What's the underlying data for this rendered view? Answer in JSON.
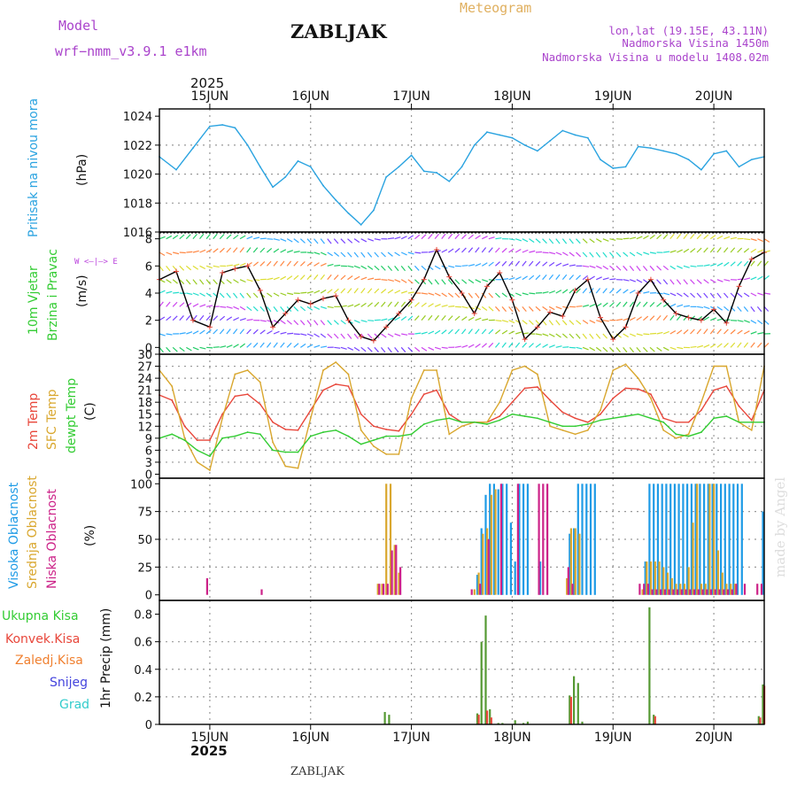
{
  "header": {
    "model_label": "Model",
    "model_name": "wrf−nmm_v3.9.1  e1km",
    "station_title": "ZABLJAK",
    "product": "Meteogram",
    "coords": "lon,lat (19.15E, 43.11N)",
    "elevation": "Nadmorska Visina 1450m",
    "model_elevation": "Nadmorska Visina u modelu 1408.02m",
    "footer_station": "ZABLJAK",
    "watermark": "made by Angel"
  },
  "time_axis": {
    "year": "2025",
    "day_labels": [
      "15JUN",
      "16JUN",
      "17JUN",
      "18JUN",
      "19JUN",
      "20JUN"
    ],
    "range_hours": [
      -12,
      132
    ]
  },
  "colors": {
    "pressure": "#2aa3e0",
    "temp_2m": "#e8463a",
    "sfc_temp": "#d9a72e",
    "dewpt": "#33cc33",
    "high_cloud": "#1e9be6",
    "mid_cloud": "#d9a72e",
    "low_cloud": "#cc2288",
    "total_precip": "#559933",
    "convective_precip": "#e8463a",
    "frozen_precip": "#f08030",
    "snow": "#4444dd",
    "hail": "#33cccc",
    "wind_speed_line": "#000000",
    "wind_label": "#33cc33",
    "compass": "#bb44dd",
    "header_purple": "#aa44cc",
    "product_title": "#e0b060"
  },
  "panels": {
    "pressure": {
      "ylabel": "Pritisak na nivou mora",
      "unit": "(hPa)"
    },
    "wind": {
      "ylabel_1": "10m Vjetar",
      "ylabel_2": "Brzina i Pravac",
      "unit": "(m/s)",
      "compass": "W <–|–> E"
    },
    "temperature": {
      "ylabel_1": "2m Temp",
      "ylabel_2": "SFC Temp",
      "ylabel_3": "dewpt Temp",
      "unit": "(C)"
    },
    "cloud": {
      "ylabel_1": "Visoka Oblacnost",
      "ylabel_2": "Srednja Oblacnost",
      "ylabel_3": "Niska Oblacnost",
      "unit": "(%)"
    },
    "precip": {
      "labels": [
        "Ukupna Kisa",
        "Konvek.Kisa",
        "Zaledj.Kisa",
        "Snijeg",
        "Grad"
      ],
      "ylabel": "1hr Precip (mm)"
    }
  },
  "chart_data": [
    {
      "type": "line",
      "id": "pressure",
      "title": "Pritisak na nivou mora",
      "ylabel": "(hPa)",
      "ylim": [
        1016,
        1024.5
      ],
      "yticks": [
        1016,
        1018,
        1020,
        1022,
        1024
      ],
      "grid": true,
      "series": [
        {
          "name": "Pritisak na nivou mora",
          "color": "#2aa3e0",
          "x": [
            -12,
            -8,
            -4,
            0,
            3,
            6,
            9,
            12,
            15,
            18,
            21,
            24,
            27,
            30,
            33,
            36,
            39,
            42,
            45,
            48,
            51,
            54,
            57,
            60,
            63,
            66,
            69,
            72,
            75,
            78,
            81,
            84,
            87,
            90,
            93,
            96,
            99,
            102,
            105,
            108,
            111,
            114,
            117,
            120,
            123,
            126,
            129,
            132
          ],
          "y": [
            1021.2,
            1020.3,
            1021.8,
            1023.3,
            1023.4,
            1023.2,
            1022,
            1020.5,
            1019.1,
            1019.8,
            1020.9,
            1020.5,
            1019.2,
            1018.2,
            1017.3,
            1016.5,
            1017.5,
            1019.8,
            1020.5,
            1021.3,
            1020.2,
            1020.1,
            1019.5,
            1020.5,
            1022,
            1022.9,
            1022.7,
            1022.5,
            1022,
            1021.6,
            1022.3,
            1023,
            1022.7,
            1022.5,
            1021,
            1020.4,
            1020.5,
            1021.9,
            1021.8,
            1021.6,
            1021.4,
            1021,
            1020.3,
            1021.4,
            1021.6,
            1020.5,
            1021,
            1021.2
          ]
        }
      ]
    },
    {
      "type": "line",
      "id": "wind",
      "title": "10m Vjetar Brzina i Pravac",
      "ylabel": "(m/s)",
      "ylim": [
        -0.5,
        8.5
      ],
      "yticks": [
        0,
        2,
        4,
        6,
        8
      ],
      "grid": false,
      "series": [
        {
          "name": "Brzina",
          "color": "#000000",
          "x": [
            -12,
            -8,
            -4,
            0,
            3,
            6,
            9,
            12,
            15,
            18,
            21,
            24,
            27,
            30,
            33,
            36,
            39,
            42,
            45,
            48,
            51,
            54,
            57,
            60,
            63,
            66,
            69,
            72,
            75,
            78,
            81,
            84,
            87,
            90,
            93,
            96,
            99,
            102,
            105,
            108,
            111,
            114,
            117,
            120,
            123,
            126,
            129,
            132
          ],
          "y": [
            5,
            5.6,
            2,
            1.5,
            5.5,
            5.8,
            6,
            4.2,
            1.5,
            2.5,
            3.5,
            3.2,
            3.6,
            3.8,
            2,
            0.8,
            0.5,
            1.5,
            2.5,
            3.5,
            5,
            7.2,
            5.2,
            4,
            2.5,
            4.5,
            5.5,
            3.5,
            0.6,
            1.5,
            2.6,
            2.3,
            4.2,
            5,
            2.2,
            0.6,
            1.5,
            4,
            5,
            3.5,
            2.5,
            2.2,
            2,
            2.8,
            1.8,
            4.5,
            6.5,
            7
          ]
        }
      ]
    },
    {
      "type": "line",
      "id": "temperature",
      "title": "2m Temp / SFC Temp / dewpt Temp",
      "ylabel": "(C)",
      "ylim": [
        -1,
        30
      ],
      "yticks": [
        0,
        3,
        6,
        9,
        12,
        15,
        18,
        21,
        24,
        27,
        30
      ],
      "grid": true,
      "series": [
        {
          "name": "2m Temp",
          "color": "#e8463a",
          "x": [
            -12,
            -9,
            -6,
            -3,
            0,
            3,
            6,
            9,
            12,
            15,
            18,
            21,
            24,
            27,
            30,
            33,
            36,
            39,
            42,
            45,
            48,
            51,
            54,
            57,
            60,
            63,
            66,
            69,
            72,
            75,
            78,
            81,
            84,
            87,
            90,
            93,
            96,
            99,
            102,
            105,
            108,
            111,
            114,
            117,
            120,
            123,
            126,
            129,
            132
          ],
          "y": [
            19.8,
            18.5,
            12,
            8.5,
            8.5,
            15,
            19.5,
            20,
            17.5,
            13,
            11.2,
            11,
            16,
            21,
            22.5,
            22,
            15,
            12,
            11.2,
            10.8,
            15,
            20,
            21,
            15,
            13,
            13,
            13,
            14.5,
            18,
            21.5,
            21.8,
            18.5,
            15.5,
            14,
            13,
            15,
            19,
            21.5,
            21.3,
            20,
            14,
            13,
            13,
            16,
            21,
            22,
            17,
            13.5,
            21
          ]
        },
        {
          "name": "SFC Temp",
          "color": "#d9a72e",
          "x": [
            -12,
            -9,
            -6,
            -3,
            0,
            3,
            6,
            9,
            12,
            15,
            18,
            21,
            24,
            27,
            30,
            33,
            36,
            39,
            42,
            45,
            48,
            51,
            54,
            57,
            60,
            63,
            66,
            69,
            72,
            75,
            78,
            81,
            84,
            87,
            90,
            93,
            96,
            99,
            102,
            105,
            108,
            111,
            114,
            117,
            120,
            123,
            126,
            129,
            132
          ],
          "y": [
            26,
            22,
            9,
            3,
            1,
            14,
            25,
            26,
            23,
            8,
            2,
            1.5,
            14,
            26,
            28,
            25,
            11,
            7,
            5,
            5,
            19,
            26,
            26,
            10,
            12,
            13,
            13,
            18,
            26,
            27,
            25,
            12,
            11,
            10,
            11,
            16,
            26,
            27.5,
            24,
            19,
            11,
            9,
            10,
            18,
            27,
            27,
            13,
            11,
            27
          ]
        },
        {
          "name": "dewpt Temp",
          "color": "#33cc33",
          "x": [
            -12,
            -9,
            -6,
            -3,
            0,
            3,
            6,
            9,
            12,
            15,
            18,
            21,
            24,
            27,
            30,
            33,
            36,
            39,
            42,
            45,
            48,
            51,
            54,
            57,
            60,
            63,
            66,
            69,
            72,
            75,
            78,
            81,
            84,
            87,
            90,
            93,
            96,
            99,
            102,
            105,
            108,
            111,
            114,
            117,
            120,
            123,
            126,
            129,
            132
          ],
          "y": [
            9,
            10,
            8.5,
            6,
            4.5,
            9,
            9.5,
            10.5,
            10,
            6,
            5.5,
            5.5,
            9.5,
            10.5,
            11,
            9.5,
            7.5,
            8.5,
            9.5,
            9.5,
            10,
            12.5,
            13.5,
            14,
            13,
            13,
            12.5,
            13.5,
            15,
            14.5,
            14,
            13,
            12,
            12,
            12.5,
            13.5,
            14,
            14.5,
            15,
            14,
            13,
            10,
            9.5,
            10.5,
            14,
            14.5,
            13,
            13,
            13
          ]
        }
      ]
    },
    {
      "type": "bar",
      "id": "cloud",
      "title": "Visoka / Srednja / Niska Oblacnost",
      "ylabel": "(%)",
      "ylim": [
        -5,
        105
      ],
      "yticks": [
        0,
        25,
        50,
        75,
        100
      ],
      "grid": true,
      "series": [
        {
          "name": "Visoka Oblacnost",
          "color": "#1e9be6",
          "x": [
            64,
            65,
            66,
            67,
            68,
            69,
            70,
            71,
            72,
            73,
            74,
            75,
            76,
            79,
            86,
            87,
            88,
            89,
            90,
            91,
            92,
            104,
            105,
            106,
            107,
            108,
            109,
            110,
            111,
            112,
            113,
            114,
            115,
            116,
            117,
            118,
            119,
            120,
            121,
            122,
            123,
            124,
            125,
            126,
            127,
            132
          ],
          "y": [
            18,
            60,
            90,
            100,
            100,
            95,
            100,
            100,
            65,
            30,
            100,
            100,
            100,
            30,
            55,
            60,
            100,
            100,
            100,
            100,
            100,
            30,
            100,
            100,
            100,
            100,
            100,
            100,
            100,
            100,
            100,
            100,
            100,
            100,
            100,
            100,
            100,
            100,
            100,
            100,
            100,
            100,
            100,
            100,
            100,
            75
          ]
        },
        {
          "name": "Srednja Oblacnost",
          "color": "#d9a72e",
          "x": [
            40,
            41,
            42,
            43,
            44,
            45,
            63,
            64,
            65,
            66,
            67,
            68,
            85,
            86,
            87,
            88,
            103,
            104,
            105,
            106,
            107,
            108,
            109,
            110,
            111,
            112,
            113,
            114,
            115,
            116,
            117,
            118,
            119,
            120,
            121,
            122,
            123,
            124,
            125
          ],
          "y": [
            10,
            10,
            100,
            100,
            45,
            20,
            5,
            20,
            55,
            60,
            90,
            95,
            15,
            60,
            60,
            55,
            5,
            30,
            30,
            30,
            30,
            25,
            20,
            15,
            10,
            10,
            10,
            25,
            65,
            100,
            10,
            10,
            100,
            100,
            40,
            20,
            10,
            10,
            10
          ]
        },
        {
          "name": "Niska Oblacnost",
          "color": "#cc2288",
          "x": [
            -1,
            12,
            40,
            41,
            42,
            43,
            44,
            45,
            62,
            64,
            66,
            69,
            73,
            78,
            79,
            80,
            85,
            86,
            102,
            103,
            104,
            105,
            106,
            107,
            108,
            109,
            110,
            111,
            112,
            113,
            114,
            115,
            116,
            117,
            118,
            119,
            120,
            121,
            122,
            123,
            124,
            125,
            127,
            130,
            131
          ],
          "y": [
            15,
            5,
            10,
            10,
            10,
            40,
            45,
            25,
            5,
            10,
            50,
            100,
            100,
            100,
            100,
            100,
            25,
            10,
            10,
            10,
            10,
            5,
            5,
            5,
            5,
            5,
            5,
            5,
            5,
            5,
            5,
            5,
            5,
            5,
            5,
            5,
            5,
            5,
            5,
            5,
            5,
            10,
            10,
            10,
            10
          ]
        }
      ]
    },
    {
      "type": "bar",
      "id": "precip",
      "title": "1hr Precip (mm)",
      "ylabel": "1hr Precip (mm)",
      "ylim": [
        0,
        0.9
      ],
      "yticks": [
        0,
        0.2,
        0.4,
        0.6,
        0.8
      ],
      "grid": true,
      "series": [
        {
          "name": "Ukupna Kisa",
          "color": "#559933",
          "x": [
            42,
            43,
            64,
            65,
            66,
            67,
            69,
            70,
            73,
            75,
            76,
            86,
            87,
            88,
            89,
            105,
            106,
            131,
            132
          ],
          "y": [
            0.09,
            0.07,
            0.08,
            0.6,
            0.79,
            0.11,
            0.01,
            0.01,
            0.03,
            0.01,
            0.02,
            0.21,
            0.35,
            0.3,
            0.02,
            0.85,
            0.07,
            0.06,
            0.29
          ]
        },
        {
          "name": "Konvek.Kisa",
          "color": "#e8463a",
          "x": [
            64,
            66,
            67,
            86,
            106,
            131,
            132
          ],
          "y": [
            0.07,
            0.1,
            0.05,
            0.2,
            0.06,
            0.05,
            0.28
          ]
        }
      ]
    }
  ]
}
